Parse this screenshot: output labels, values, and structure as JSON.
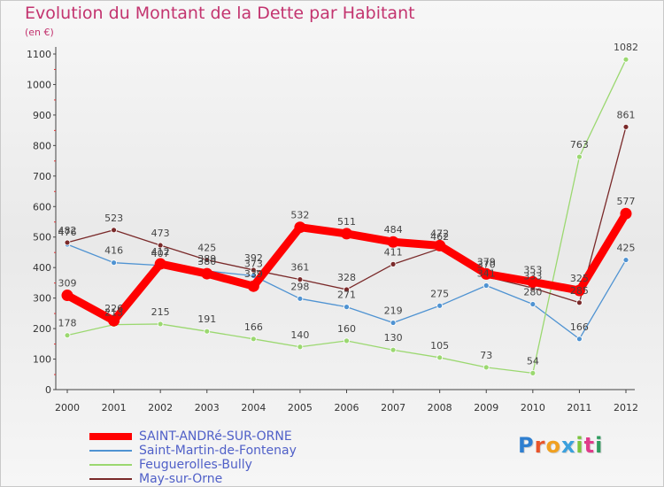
{
  "title": "Evolution du Montant de la Dette par Habitant",
  "unit": "(en €)",
  "logo": "Proxiti",
  "chart_data": {
    "type": "line",
    "title": "Evolution du Montant de la Dette par Habitant",
    "subtitle": "(en €)",
    "xlabel": "",
    "ylabel": "",
    "ylim": [
      0,
      1100
    ],
    "yticks": [
      0,
      100,
      200,
      300,
      400,
      500,
      600,
      700,
      800,
      900,
      1000,
      1100
    ],
    "x": [
      "2000",
      "2001",
      "2002",
      "2003",
      "2004",
      "2005",
      "2006",
      "2007",
      "2008",
      "2009",
      "2010",
      "2011",
      "2012"
    ],
    "grid": false,
    "legend": "bottom-left",
    "series": [
      {
        "name": "SAINT-ANDRé-SUR-ORNE",
        "color": "#ff0000",
        "values": [
          309,
          226,
          412,
          380,
          339,
          532,
          511,
          484,
          472,
          379,
          353,
          325,
          577
        ]
      },
      {
        "name": "Saint-Martin-de-Fontenay",
        "color": "#4f93d2",
        "values": [
          476,
          416,
          407,
          389,
          373,
          298,
          271,
          219,
          275,
          341,
          280,
          166,
          425
        ]
      },
      {
        "name": "Feuguerolles-Bully",
        "color": "#9bd870",
        "values": [
          178,
          213,
          215,
          191,
          166,
          140,
          160,
          130,
          105,
          73,
          54,
          763,
          1082
        ]
      },
      {
        "name": "May-sur-Orne",
        "color": "#7a2a2a",
        "values": [
          482,
          523,
          473,
          425,
          392,
          361,
          328,
          411,
          462,
          370,
          333,
          285,
          861
        ]
      }
    ]
  }
}
